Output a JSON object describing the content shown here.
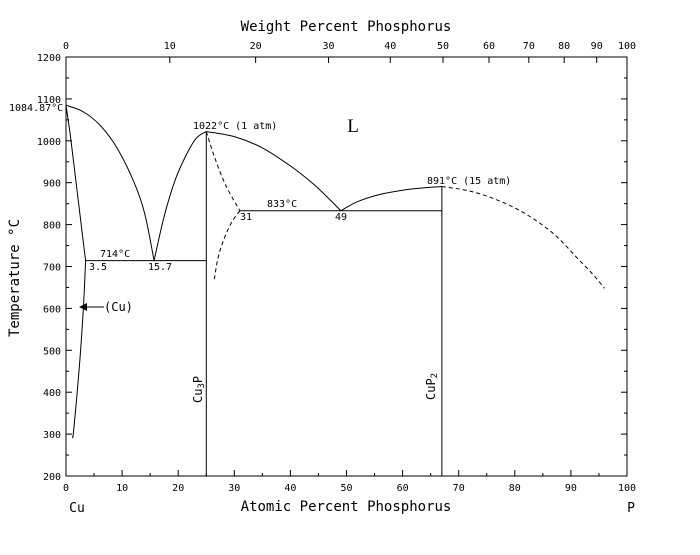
{
  "chart_data": {
    "type": "phase-diagram",
    "title": "",
    "top_axis": {
      "label": "Weight Percent Phosphorus",
      "ticks": [
        {
          "label": "0",
          "at": 0
        },
        {
          "label": "10",
          "at": 18.5
        },
        {
          "label": "20",
          "at": 33.8
        },
        {
          "label": "30",
          "at": 46.8
        },
        {
          "label": "40",
          "at": 57.8
        },
        {
          "label": "50",
          "at": 67.2
        },
        {
          "label": "60",
          "at": 75.4
        },
        {
          "label": "70",
          "at": 82.5
        },
        {
          "label": "80",
          "at": 88.8
        },
        {
          "label": "90",
          "at": 94.6
        },
        {
          "label": "100",
          "at": 100
        }
      ]
    },
    "bottom_axis": {
      "label": "Atomic Percent Phosphorus",
      "range": [
        0,
        100
      ],
      "ticks": [
        "0",
        "10",
        "20",
        "30",
        "40",
        "50",
        "60",
        "70",
        "80",
        "90",
        "100"
      ],
      "left_element": "Cu",
      "right_element": "P"
    },
    "y_axis": {
      "label": "Temperature °C",
      "range": [
        200,
        1200
      ],
      "ticks": [
        "200",
        "300",
        "400",
        "500",
        "600",
        "700",
        "800",
        "900",
        "1000",
        "1100",
        "1200"
      ]
    },
    "phase_labels": {
      "liquid": "L",
      "cu_solid": "(Cu)",
      "cu3p": [
        "Cu",
        "3",
        "P"
      ],
      "cup2": [
        "CuP",
        "2"
      ]
    },
    "annotations": {
      "cu_melting": "1084.87°C",
      "cu3p_melting": "1022°C (1 atm)",
      "cup2_melting": "891°C (15 atm)",
      "eutectic_1_temp": "714°C",
      "eutectic_1_left": "3.5",
      "eutectic_1_right": "15.7",
      "eutectic_2_temp": "833°C",
      "eutectic_2_left": "31",
      "eutectic_2_right": "49"
    },
    "curves": {
      "cu_liquidus": [
        [
          0,
          1084.87
        ],
        [
          3,
          1070
        ],
        [
          6,
          1038
        ],
        [
          9,
          985
        ],
        [
          12,
          905
        ],
        [
          14,
          828
        ],
        [
          15.7,
          714
        ]
      ],
      "cu3p_liquidus_left": [
        [
          15.7,
          714
        ],
        [
          17.5,
          820
        ],
        [
          19.5,
          908
        ],
        [
          21.5,
          968
        ],
        [
          23.2,
          1006
        ],
        [
          25,
          1022
        ]
      ],
      "cu3p_liquidus_right": [
        [
          25,
          1022
        ],
        [
          30,
          1010
        ],
        [
          35,
          983
        ],
        [
          40,
          940
        ],
        [
          44,
          898
        ],
        [
          47,
          860
        ],
        [
          49,
          833
        ]
      ],
      "cup2_liquidus_left": [
        [
          49,
          833
        ],
        [
          52,
          855
        ],
        [
          56,
          872
        ],
        [
          60,
          882
        ],
        [
          64,
          888
        ],
        [
          67,
          891
        ]
      ],
      "cu_solidus": [
        [
          0,
          1084.87
        ],
        [
          0.8,
          1010
        ],
        [
          1.8,
          900
        ],
        [
          2.8,
          790
        ],
        [
          3.5,
          714
        ]
      ],
      "cu_solvus": [
        [
          3.5,
          714
        ],
        [
          3.1,
          600
        ],
        [
          2.6,
          500
        ],
        [
          2.0,
          400
        ],
        [
          1.3,
          300
        ],
        [
          1.2,
          295
        ]
      ],
      "cu3p_metastable_right": [
        [
          25,
          1022
        ],
        [
          26.5,
          960
        ],
        [
          28.5,
          893
        ],
        [
          31,
          833
        ]
      ],
      "cu3p_metastable_left": [
        [
          31,
          833
        ],
        [
          29.5,
          805
        ],
        [
          28,
          760
        ],
        [
          27,
          715
        ],
        [
          26.4,
          665
        ]
      ],
      "cup2_metastable": [
        [
          67,
          891
        ],
        [
          72,
          880
        ],
        [
          77,
          858
        ],
        [
          82,
          825
        ],
        [
          87,
          777
        ],
        [
          91,
          722
        ],
        [
          94,
          680
        ],
        [
          96,
          648
        ]
      ],
      "cu3p_line": [
        [
          25,
          200
        ],
        [
          25,
          1022
        ]
      ],
      "cup2_line": [
        [
          67,
          200
        ],
        [
          67,
          891
        ]
      ],
      "eutectic_1": [
        [
          3.5,
          714
        ],
        [
          25,
          714
        ]
      ],
      "eutectic_2": [
        [
          31,
          833
        ],
        [
          67,
          833
        ]
      ]
    },
    "grid": false
  }
}
